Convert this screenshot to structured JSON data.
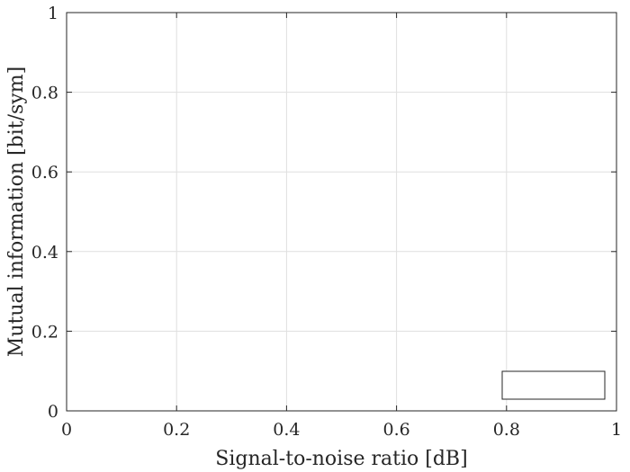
{
  "chart_data": {
    "type": "line",
    "title": "",
    "xlabel": "Signal-to-noise ratio [dB]",
    "ylabel": "Mutual information [bit/sym]",
    "xlim": [
      0,
      1
    ],
    "ylim": [
      0,
      1
    ],
    "xticks": [
      0,
      0.2,
      0.4,
      0.6,
      0.8,
      1
    ],
    "xtick_labels": [
      "0",
      "0.2",
      "0.4",
      "0.6",
      "0.8",
      "1"
    ],
    "yticks": [
      0,
      0.2,
      0.4,
      0.6,
      0.8,
      1
    ],
    "ytick_labels": [
      "0",
      "0.2",
      "0.4",
      "0.6",
      "0.8",
      "1"
    ],
    "grid": true,
    "series": [],
    "legend": {
      "position": "bottom-right",
      "entries": []
    },
    "colors": {
      "axis": "#262626",
      "grid": "#dfdfdf",
      "background": "#ffffff"
    }
  }
}
